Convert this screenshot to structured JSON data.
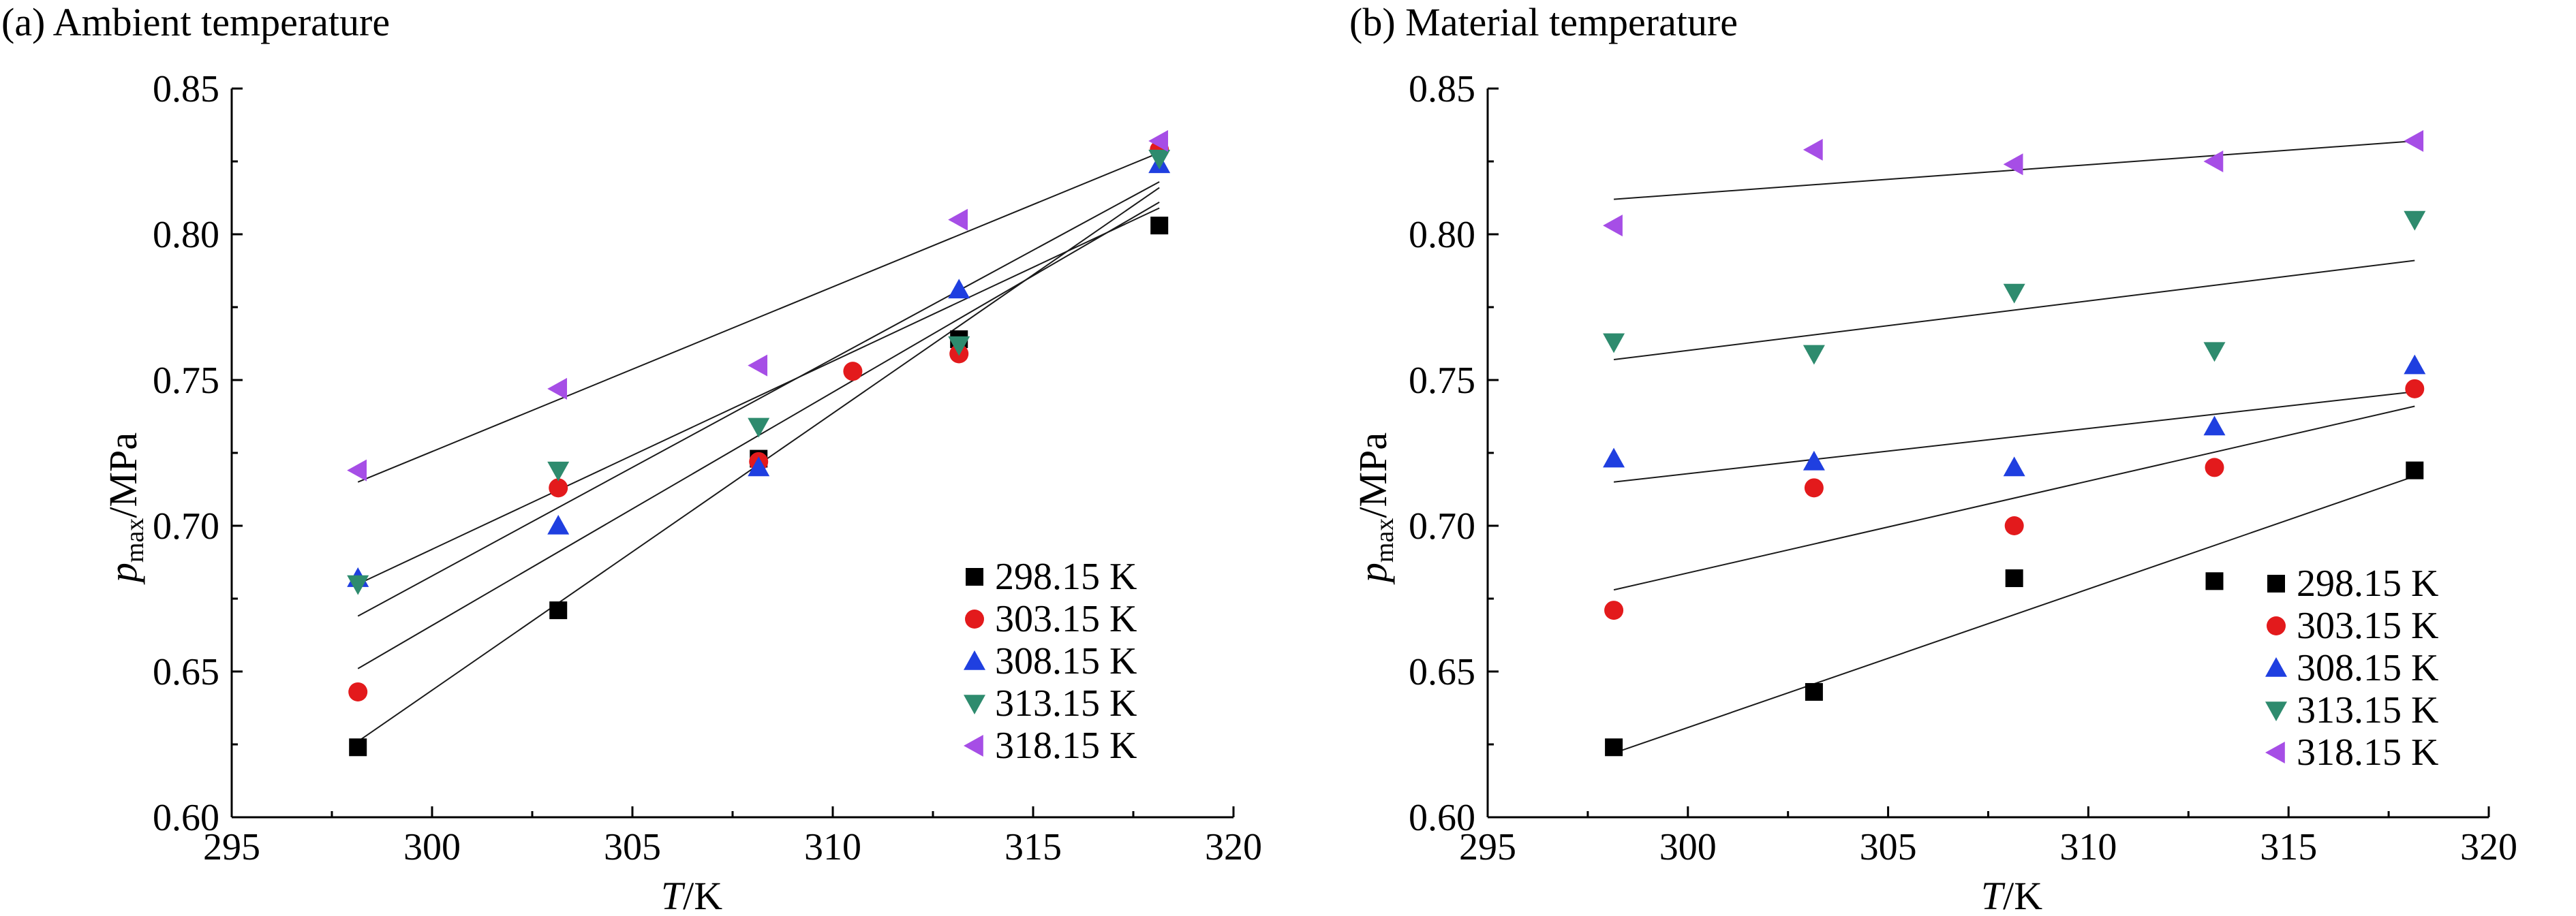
{
  "chart_data": [
    {
      "panel": "(a)",
      "type": "scatter",
      "title": "(a) Ambient temperature",
      "xlabel_var": "T",
      "xlabel_unit": "/K",
      "ylabel_var": "p",
      "ylabel_sub": "max",
      "ylabel_unit": "/MPa",
      "xlim": [
        295,
        320
      ],
      "ylim": [
        0.6,
        0.85
      ],
      "xticks": [
        "295",
        "300",
        "305",
        "310",
        "315",
        "320"
      ],
      "yticks": [
        "0.60",
        "0.65",
        "0.70",
        "0.75",
        "0.80",
        "0.85"
      ],
      "legend_position": "bottom-right",
      "grid": false,
      "series": [
        {
          "name": "298.15 K",
          "marker": "square",
          "color": "#000000",
          "points": [
            [
              298.15,
              0.624
            ],
            [
              303.15,
              0.671
            ],
            [
              308.15,
              0.723
            ],
            [
              313.15,
              0.764
            ],
            [
              318.15,
              0.803
            ]
          ],
          "fit": [
            [
              298.15,
              0.626
            ],
            [
              318.15,
              0.816
            ]
          ]
        },
        {
          "name": "303.15 K",
          "marker": "circle",
          "color": "#e31a1c",
          "points": [
            [
              298.15,
              0.643
            ],
            [
              303.15,
              0.713
            ],
            [
              308.15,
              0.722
            ],
            [
              310.5,
              0.753
            ],
            [
              313.15,
              0.759
            ],
            [
              318.15,
              0.829
            ]
          ],
          "fit": [
            [
              298.15,
              0.651
            ],
            [
              318.15,
              0.811
            ]
          ]
        },
        {
          "name": "308.15 K",
          "marker": "triangle-up",
          "color": "#1f3fe0",
          "points": [
            [
              298.15,
              0.682
            ],
            [
              303.15,
              0.7
            ],
            [
              308.15,
              0.72
            ],
            [
              313.15,
              0.781
            ],
            [
              318.15,
              0.824
            ]
          ],
          "fit": [
            [
              298.15,
              0.669
            ],
            [
              318.15,
              0.818
            ]
          ]
        },
        {
          "name": "313.15 K",
          "marker": "triangle-down",
          "color": "#2e8b6e",
          "points": [
            [
              298.15,
              0.68
            ],
            [
              303.15,
              0.719
            ],
            [
              308.15,
              0.734
            ],
            [
              313.15,
              0.762
            ],
            [
              318.15,
              0.826
            ]
          ],
          "fit": [
            [
              298.15,
              0.68
            ],
            [
              318.15,
              0.809
            ]
          ]
        },
        {
          "name": "318.15 K",
          "marker": "triangle-left",
          "color": "#a64ee6",
          "points": [
            [
              298.15,
              0.719
            ],
            [
              303.15,
              0.747
            ],
            [
              308.15,
              0.755
            ],
            [
              313.15,
              0.805
            ],
            [
              318.15,
              0.832
            ]
          ],
          "fit": [
            [
              298.15,
              0.715
            ],
            [
              318.15,
              0.828
            ]
          ]
        }
      ]
    },
    {
      "panel": "(b)",
      "type": "scatter",
      "title": "(b) Material temperature",
      "xlabel_var": "T",
      "xlabel_unit": "/K",
      "ylabel_var": "p",
      "ylabel_sub": "max",
      "ylabel_unit": "/MPa",
      "xlim": [
        295,
        320
      ],
      "ylim": [
        0.6,
        0.85
      ],
      "xticks": [
        "295",
        "300",
        "305",
        "310",
        "315",
        "320"
      ],
      "yticks": [
        "0.60",
        "0.65",
        "0.70",
        "0.75",
        "0.80",
        "0.85"
      ],
      "legend_position": "bottom-right",
      "grid": false,
      "series": [
        {
          "name": "298.15 K",
          "marker": "square",
          "color": "#000000",
          "points": [
            [
              298.15,
              0.624
            ],
            [
              303.15,
              0.643
            ],
            [
              308.15,
              0.682
            ],
            [
              313.15,
              0.681
            ],
            [
              318.15,
              0.719
            ]
          ],
          "fit": [
            [
              298.15,
              0.622
            ],
            [
              318.15,
              0.717
            ]
          ]
        },
        {
          "name": "303.15 K",
          "marker": "circle",
          "color": "#e31a1c",
          "points": [
            [
              298.15,
              0.671
            ],
            [
              303.15,
              0.713
            ],
            [
              308.15,
              0.7
            ],
            [
              313.15,
              0.72
            ],
            [
              318.15,
              0.747
            ]
          ],
          "fit": [
            [
              298.15,
              0.678
            ],
            [
              318.15,
              0.741
            ]
          ]
        },
        {
          "name": "308.15 K",
          "marker": "triangle-up",
          "color": "#1f3fe0",
          "points": [
            [
              298.15,
              0.723
            ],
            [
              303.15,
              0.722
            ],
            [
              308.15,
              0.72
            ],
            [
              313.15,
              0.734
            ],
            [
              318.15,
              0.755
            ]
          ],
          "fit": [
            [
              298.15,
              0.715
            ],
            [
              318.15,
              0.746
            ]
          ]
        },
        {
          "name": "313.15 K",
          "marker": "triangle-down",
          "color": "#2e8b6e",
          "points": [
            [
              298.15,
              0.763
            ],
            [
              303.15,
              0.759
            ],
            [
              308.15,
              0.78
            ],
            [
              313.15,
              0.76
            ],
            [
              318.15,
              0.805
            ]
          ],
          "fit": [
            [
              298.15,
              0.757
            ],
            [
              318.15,
              0.791
            ]
          ]
        },
        {
          "name": "318.15 K",
          "marker": "triangle-left",
          "color": "#a64ee6",
          "points": [
            [
              298.15,
              0.803
            ],
            [
              303.15,
              0.829
            ],
            [
              308.15,
              0.824
            ],
            [
              313.15,
              0.825
            ],
            [
              318.15,
              0.832
            ]
          ],
          "fit": [
            [
              298.15,
              0.812
            ],
            [
              318.15,
              0.832
            ]
          ]
        }
      ]
    }
  ]
}
